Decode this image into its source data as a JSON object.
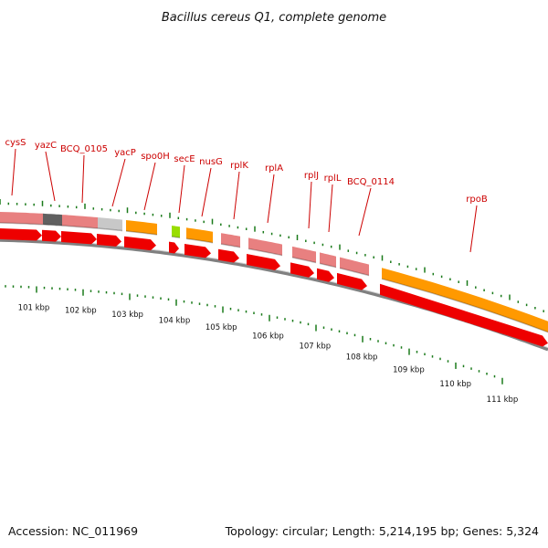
{
  "title": "Bacillus cereus Q1, complete genome",
  "footer": {
    "accession": "Accession: NC_011969",
    "topology": "Topology: circular; Length: 5,214,195 bp; Genes: 5,324"
  },
  "colors": {
    "gene_label": "#cc0000",
    "tick": "#1a7a1a",
    "backbone": "#808080",
    "cds_red": "#ee0000",
    "pink": "#e88080",
    "orange": "#ff9900",
    "dark": "#606060",
    "grey": "#c8c8c8",
    "lime": "#99dd00"
  },
  "scale": {
    "unit": "kbp",
    "labels": [
      "101 kbp",
      "102 kbp",
      "103 kbp",
      "104 kbp",
      "105 kbp",
      "106 kbp",
      "107 kbp",
      "108 kbp",
      "109 kbp",
      "110 kbp",
      "111 kbp"
    ]
  },
  "genes": [
    {
      "name": "cysS"
    },
    {
      "name": "yazC"
    },
    {
      "name": "BCQ_0105"
    },
    {
      "name": "yacP"
    },
    {
      "name": "spo0H"
    },
    {
      "name": "secE"
    },
    {
      "name": "nusG"
    },
    {
      "name": "rplK"
    },
    {
      "name": "rplA"
    },
    {
      "name": "rplJ"
    },
    {
      "name": "rplL"
    },
    {
      "name": "BCQ_0114"
    },
    {
      "name": "rpoB"
    }
  ]
}
